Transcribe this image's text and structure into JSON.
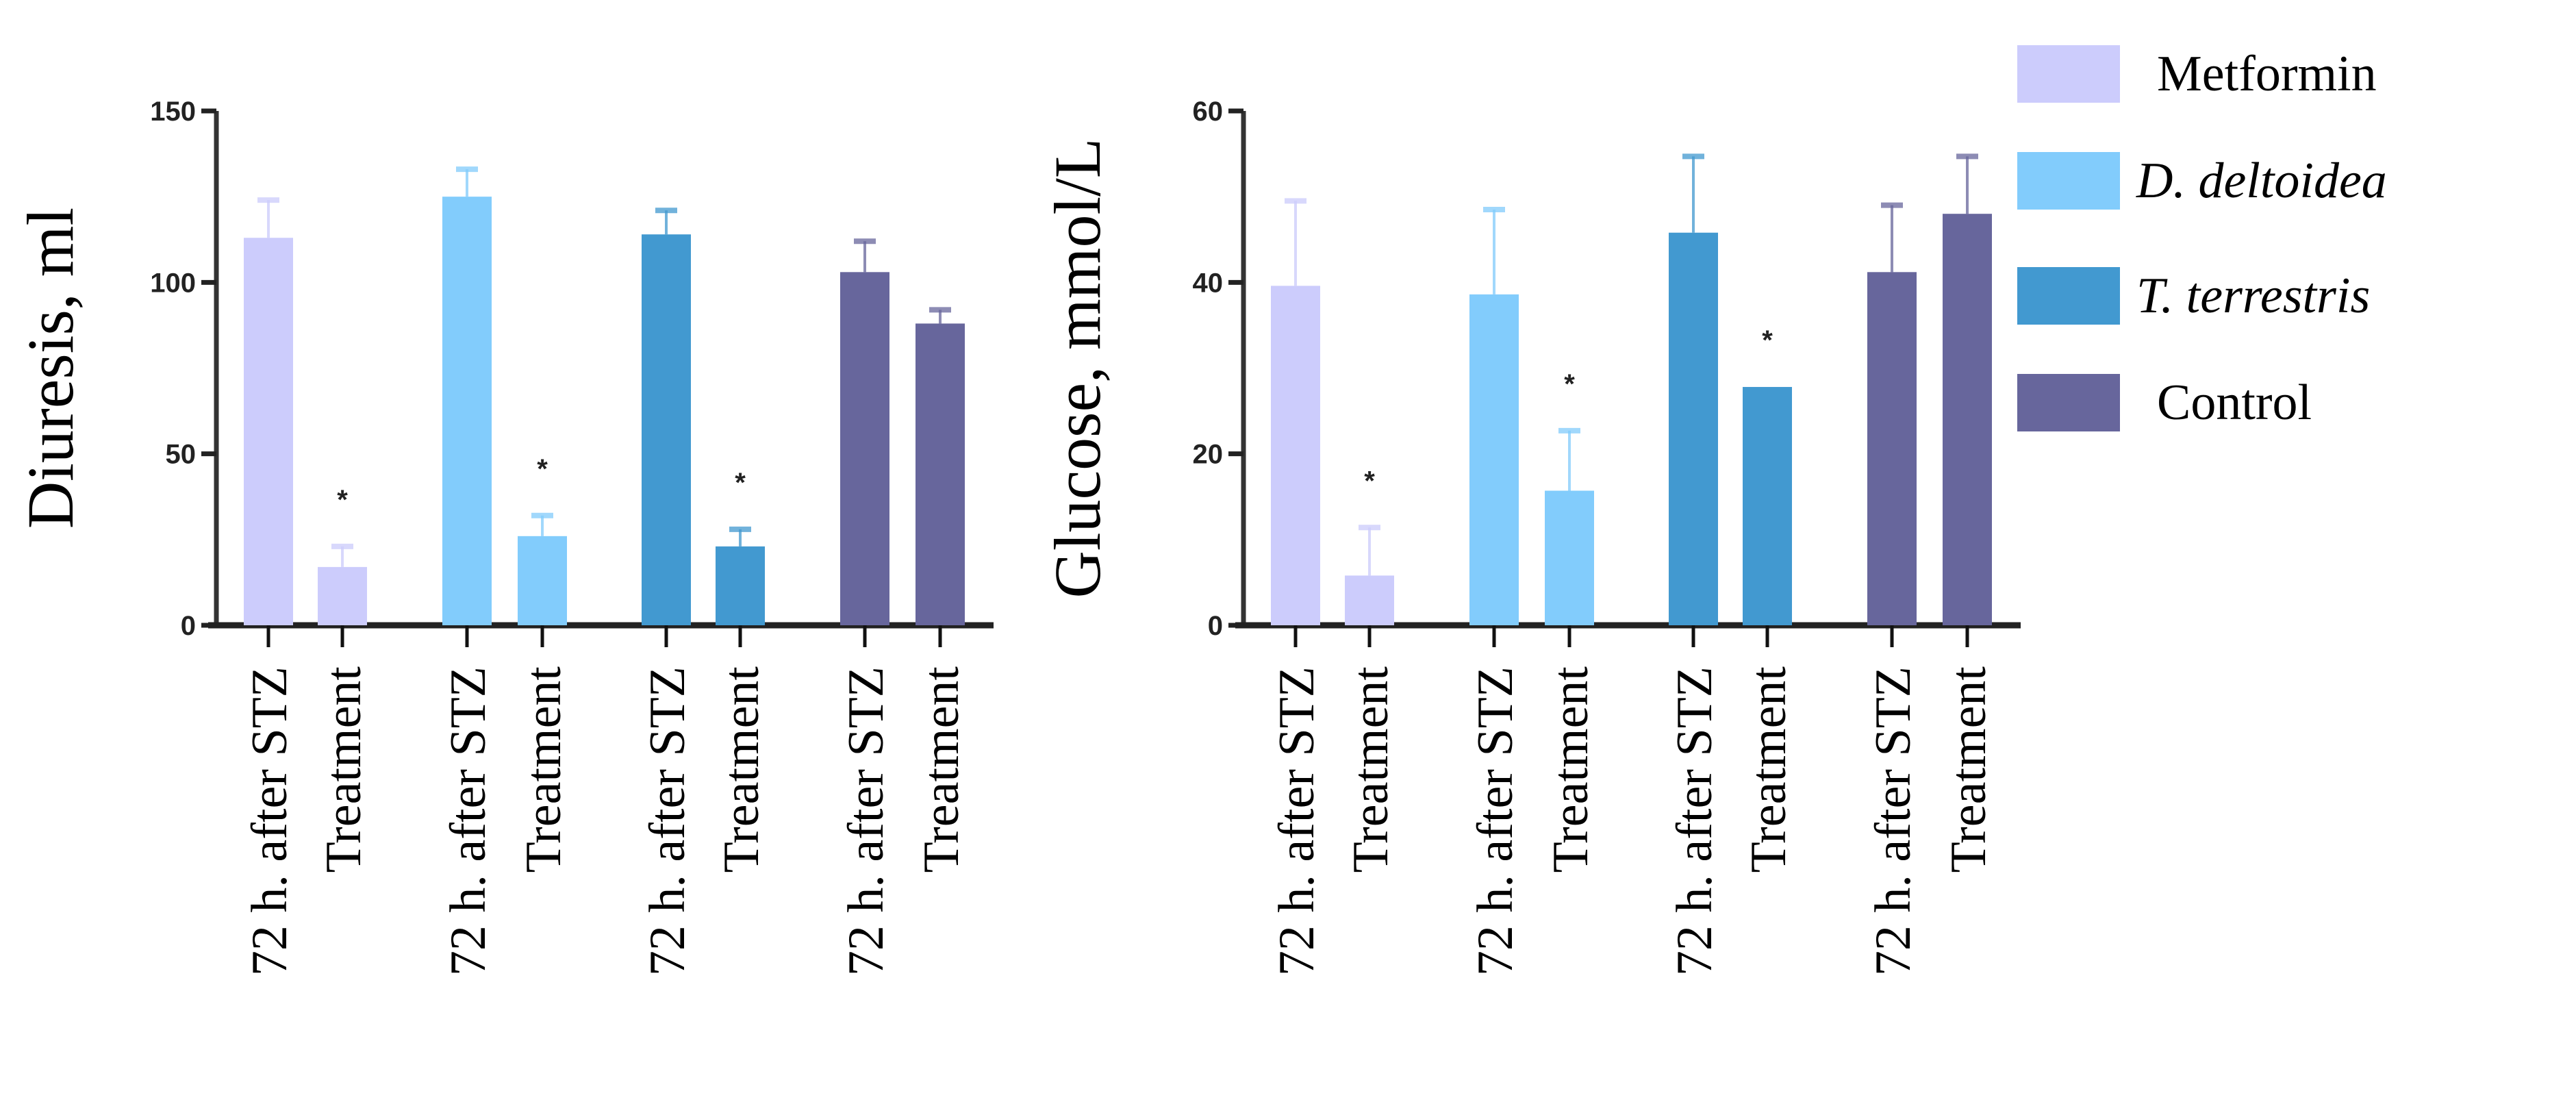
{
  "chart_data": [
    {
      "type": "bar",
      "ylabel": "Diuresis, ml",
      "ylim": [
        0,
        150
      ],
      "yticks": [
        0,
        50,
        100,
        150
      ],
      "categories": [
        "72 h. after STZ",
        "Treatment",
        "72 h. after STZ",
        "Treatment",
        "72 h. after STZ",
        "Treatment",
        "72 h. after STZ",
        "Treatment"
      ],
      "groups": [
        "Metformin",
        "D. deltoidea",
        "T. terrestris",
        "Control"
      ],
      "values": [
        113,
        17,
        125,
        26,
        114,
        23,
        103,
        88
      ],
      "error_upper": [
        124,
        23,
        133,
        32,
        121,
        28,
        112,
        92
      ],
      "significant": [
        false,
        true,
        false,
        true,
        false,
        true,
        false,
        false
      ],
      "annotation": "*"
    },
    {
      "type": "bar",
      "ylabel": "Glucose, mmol/L",
      "ylim": [
        0,
        60
      ],
      "yticks": [
        0,
        20,
        40,
        60
      ],
      "categories": [
        "72 h. after STZ",
        "Treatment",
        "72 h. after STZ",
        "Treatment",
        "72 h. after STZ",
        "Treatment",
        "72 h. after STZ",
        "Treatment"
      ],
      "groups": [
        "Metformin",
        "D. deltoidea",
        "T. terrestris",
        "Control"
      ],
      "values": [
        39.6,
        5.8,
        38.6,
        15.7,
        45.8,
        27.8,
        41.2,
        48
      ],
      "error_upper": [
        49.5,
        11.4,
        48.5,
        22.7,
        54.7,
        null,
        49,
        54.7
      ],
      "significant": [
        false,
        true,
        false,
        true,
        false,
        true,
        false,
        false
      ],
      "annotation": "*"
    }
  ],
  "legend": {
    "placement": "right",
    "items": [
      {
        "label": "Metformin",
        "color": "#ccccfc",
        "italic": false
      },
      {
        "label": "D. deltoidea",
        "color": "#82ccfc",
        "italic": true
      },
      {
        "label": "T. terrestris",
        "color": "#4299d0",
        "italic": true
      },
      {
        "label": "Control",
        "color": "#67669c",
        "italic": false
      }
    ]
  }
}
